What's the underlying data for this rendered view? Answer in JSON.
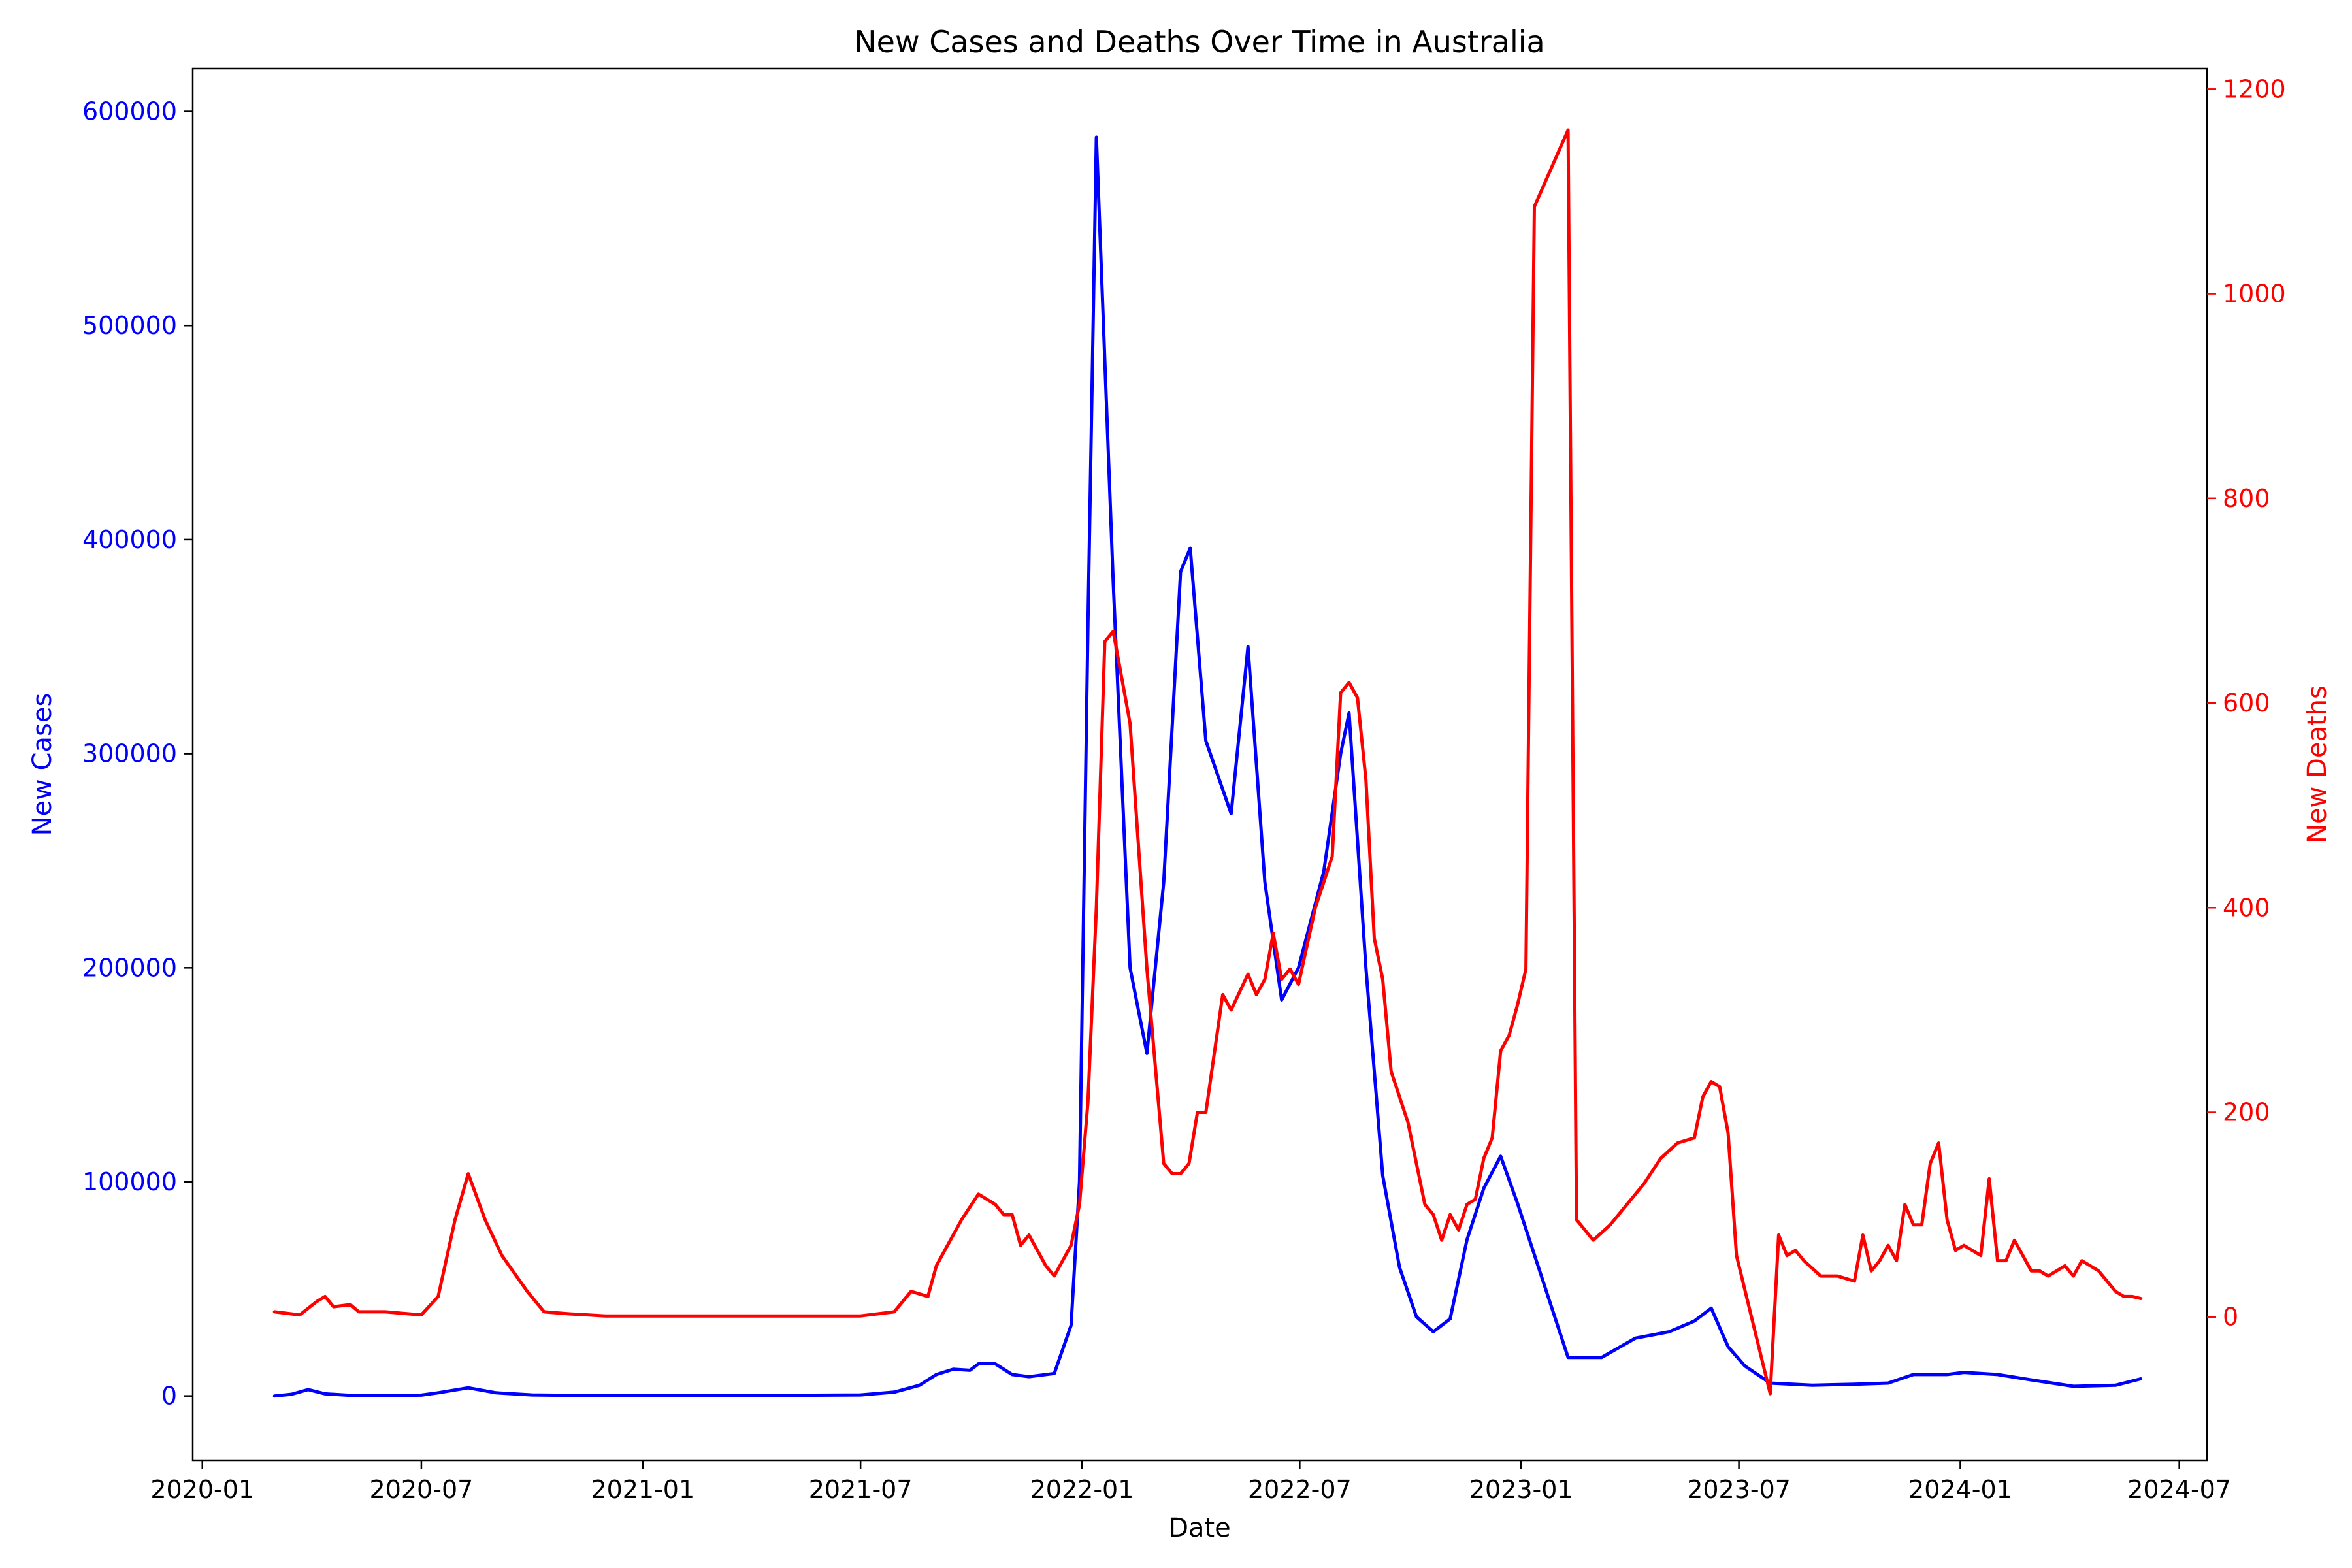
{
  "chart_data": {
    "type": "line",
    "title": "New Cases and Deaths Over Time in Australia",
    "xlabel": "Date",
    "ylabel": "New Cases",
    "ylabel_right": "New Deaths",
    "x_ticks": [
      "2020-01",
      "2020-07",
      "2021-01",
      "2021-07",
      "2022-01",
      "2022-07",
      "2023-01",
      "2023-07",
      "2024-01",
      "2024-07"
    ],
    "xlim": [
      "2019-12-24",
      "2024-07-24"
    ],
    "ylim": [
      -30000,
      620000
    ],
    "ylim_right": [
      -140,
      1220
    ],
    "y_ticks": [
      0,
      100000,
      200000,
      300000,
      400000,
      500000,
      600000
    ],
    "y_ticks_right": [
      0,
      200,
      400,
      600,
      800,
      1000,
      1200
    ],
    "grid": false,
    "colors": {
      "cases": "#0000ff",
      "deaths": "#ff0000",
      "axis": "#000000"
    },
    "series": [
      {
        "name": "New Cases",
        "axis": "left",
        "color": "#0000ff",
        "points": [
          [
            "2020-03-01",
            0
          ],
          [
            "2020-03-15",
            800
          ],
          [
            "2020-03-29",
            3000
          ],
          [
            "2020-04-12",
            1000
          ],
          [
            "2020-05-03",
            300
          ],
          [
            "2020-06-01",
            200
          ],
          [
            "2020-07-01",
            400
          ],
          [
            "2020-07-15",
            1500
          ],
          [
            "2020-08-09",
            3800
          ],
          [
            "2020-09-01",
            1500
          ],
          [
            "2020-10-01",
            500
          ],
          [
            "2020-11-01",
            300
          ],
          [
            "2020-12-01",
            200
          ],
          [
            "2021-01-01",
            300
          ],
          [
            "2021-04-01",
            200
          ],
          [
            "2021-07-01",
            500
          ],
          [
            "2021-07-29",
            1800
          ],
          [
            "2021-08-19",
            5000
          ],
          [
            "2021-09-02",
            10000
          ],
          [
            "2021-09-16",
            12500
          ],
          [
            "2021-09-30",
            12000
          ],
          [
            "2021-10-07",
            15000
          ],
          [
            "2021-10-21",
            15000
          ],
          [
            "2021-11-04",
            10000
          ],
          [
            "2021-11-18",
            9000
          ],
          [
            "2021-12-09",
            10500
          ],
          [
            "2021-12-23",
            33000
          ],
          [
            "2021-12-30",
            100000
          ],
          [
            "2022-01-06",
            360000
          ],
          [
            "2022-01-13",
            588000
          ],
          [
            "2022-01-27",
            380000
          ],
          [
            "2022-02-10",
            200000
          ],
          [
            "2022-02-24",
            160000
          ],
          [
            "2022-03-10",
            240000
          ],
          [
            "2022-03-24",
            385000
          ],
          [
            "2022-04-01",
            396000
          ],
          [
            "2022-04-14",
            306000
          ],
          [
            "2022-05-05",
            272000
          ],
          [
            "2022-05-19",
            350000
          ],
          [
            "2022-06-02",
            240000
          ],
          [
            "2022-06-16",
            185000
          ],
          [
            "2022-06-30",
            200000
          ],
          [
            "2022-07-21",
            245000
          ],
          [
            "2022-08-04",
            300000
          ],
          [
            "2022-08-11",
            319000
          ],
          [
            "2022-08-25",
            200000
          ],
          [
            "2022-09-08",
            103000
          ],
          [
            "2022-09-22",
            60000
          ],
          [
            "2022-10-06",
            37000
          ],
          [
            "2022-10-20",
            30000
          ],
          [
            "2022-11-03",
            36000
          ],
          [
            "2022-11-17",
            73000
          ],
          [
            "2022-12-01",
            97000
          ],
          [
            "2022-12-15",
            112000
          ],
          [
            "2022-12-29",
            90000
          ],
          [
            "2023-02-09",
            18000
          ],
          [
            "2023-03-09",
            18000
          ],
          [
            "2023-04-06",
            27000
          ],
          [
            "2023-05-04",
            30000
          ],
          [
            "2023-05-25",
            35000
          ],
          [
            "2023-06-08",
            41000
          ],
          [
            "2023-06-22",
            23000
          ],
          [
            "2023-07-06",
            14000
          ],
          [
            "2023-07-27",
            6000
          ],
          [
            "2023-08-31",
            5000
          ],
          [
            "2023-10-05",
            5500
          ],
          [
            "2023-11-02",
            6000
          ],
          [
            "2023-11-23",
            10000
          ],
          [
            "2023-12-21",
            10000
          ],
          [
            "2024-01-04",
            11000
          ],
          [
            "2024-02-01",
            10000
          ],
          [
            "2024-02-29",
            7500
          ],
          [
            "2024-04-04",
            4500
          ],
          [
            "2024-05-09",
            5000
          ],
          [
            "2024-05-30",
            8000
          ]
        ]
      },
      {
        "name": "New Deaths",
        "axis": "right",
        "color": "#ff0000",
        "points": [
          [
            "2020-03-01",
            5
          ],
          [
            "2020-03-22",
            2
          ],
          [
            "2020-04-05",
            15
          ],
          [
            "2020-04-12",
            20
          ],
          [
            "2020-04-19",
            10
          ],
          [
            "2020-05-03",
            12
          ],
          [
            "2020-05-10",
            5
          ],
          [
            "2020-06-01",
            5
          ],
          [
            "2020-07-01",
            2
          ],
          [
            "2020-07-15",
            20
          ],
          [
            "2020-07-29",
            95
          ],
          [
            "2020-08-09",
            140
          ],
          [
            "2020-08-23",
            95
          ],
          [
            "2020-09-06",
            60
          ],
          [
            "2020-09-27",
            25
          ],
          [
            "2020-10-11",
            5
          ],
          [
            "2020-11-01",
            3
          ],
          [
            "2020-12-01",
            1
          ],
          [
            "2021-01-01",
            1
          ],
          [
            "2021-04-01",
            1
          ],
          [
            "2021-07-01",
            1
          ],
          [
            "2021-07-29",
            5
          ],
          [
            "2021-08-12",
            25
          ],
          [
            "2021-08-26",
            20
          ],
          [
            "2021-09-02",
            50
          ],
          [
            "2021-09-23",
            95
          ],
          [
            "2021-10-07",
            120
          ],
          [
            "2021-10-21",
            110
          ],
          [
            "2021-10-28",
            100
          ],
          [
            "2021-11-04",
            100
          ],
          [
            "2021-11-11",
            70
          ],
          [
            "2021-11-18",
            80
          ],
          [
            "2021-12-02",
            50
          ],
          [
            "2021-12-09",
            40
          ],
          [
            "2021-12-23",
            70
          ],
          [
            "2021-12-30",
            110
          ],
          [
            "2022-01-06",
            210
          ],
          [
            "2022-01-13",
            400
          ],
          [
            "2022-01-20",
            660
          ],
          [
            "2022-01-27",
            670
          ],
          [
            "2022-02-10",
            580
          ],
          [
            "2022-02-24",
            340
          ],
          [
            "2022-03-10",
            150
          ],
          [
            "2022-03-17",
            140
          ],
          [
            "2022-03-24",
            140
          ],
          [
            "2022-03-31",
            150
          ],
          [
            "2022-04-07",
            200
          ],
          [
            "2022-04-14",
            200
          ],
          [
            "2022-04-28",
            315
          ],
          [
            "2022-05-05",
            300
          ],
          [
            "2022-05-19",
            335
          ],
          [
            "2022-05-26",
            315
          ],
          [
            "2022-06-02",
            330
          ],
          [
            "2022-06-09",
            375
          ],
          [
            "2022-06-16",
            330
          ],
          [
            "2022-06-23",
            340
          ],
          [
            "2022-06-30",
            325
          ],
          [
            "2022-07-14",
            400
          ],
          [
            "2022-07-28",
            450
          ],
          [
            "2022-08-04",
            610
          ],
          [
            "2022-08-11",
            620
          ],
          [
            "2022-08-18",
            605
          ],
          [
            "2022-08-25",
            525
          ],
          [
            "2022-09-01",
            370
          ],
          [
            "2022-09-08",
            330
          ],
          [
            "2022-09-15",
            240
          ],
          [
            "2022-09-29",
            190
          ],
          [
            "2022-10-13",
            110
          ],
          [
            "2022-10-20",
            100
          ],
          [
            "2022-10-27",
            75
          ],
          [
            "2022-11-03",
            100
          ],
          [
            "2022-11-10",
            85
          ],
          [
            "2022-11-17",
            110
          ],
          [
            "2022-11-24",
            115
          ],
          [
            "2022-12-01",
            155
          ],
          [
            "2022-12-08",
            175
          ],
          [
            "2022-12-15",
            260
          ],
          [
            "2022-12-22",
            275
          ],
          [
            "2022-12-29",
            305
          ],
          [
            "2023-01-05",
            340
          ],
          [
            "2023-01-12",
            1085
          ],
          [
            "2023-02-09",
            1160
          ],
          [
            "2023-02-16",
            95
          ],
          [
            "2023-03-02",
            75
          ],
          [
            "2023-03-16",
            90
          ],
          [
            "2023-03-30",
            110
          ],
          [
            "2023-04-13",
            130
          ],
          [
            "2023-04-27",
            155
          ],
          [
            "2023-05-11",
            170
          ],
          [
            "2023-05-25",
            175
          ],
          [
            "2023-06-01",
            215
          ],
          [
            "2023-06-08",
            230
          ],
          [
            "2023-06-15",
            225
          ],
          [
            "2023-06-22",
            180
          ],
          [
            "2023-06-29",
            60
          ],
          [
            "2023-07-27",
            -75
          ],
          [
            "2023-08-03",
            80
          ],
          [
            "2023-08-10",
            60
          ],
          [
            "2023-08-17",
            65
          ],
          [
            "2023-08-24",
            55
          ],
          [
            "2023-09-07",
            40
          ],
          [
            "2023-09-21",
            40
          ],
          [
            "2023-10-05",
            35
          ],
          [
            "2023-10-12",
            80
          ],
          [
            "2023-10-19",
            45
          ],
          [
            "2023-10-26",
            55
          ],
          [
            "2023-11-02",
            70
          ],
          [
            "2023-11-09",
            55
          ],
          [
            "2023-11-16",
            110
          ],
          [
            "2023-11-23",
            90
          ],
          [
            "2023-11-30",
            90
          ],
          [
            "2023-12-07",
            150
          ],
          [
            "2023-12-14",
            170
          ],
          [
            "2023-12-21",
            95
          ],
          [
            "2023-12-28",
            65
          ],
          [
            "2024-01-04",
            70
          ],
          [
            "2024-01-18",
            60
          ],
          [
            "2024-01-25",
            135
          ],
          [
            "2024-02-01",
            55
          ],
          [
            "2024-02-08",
            55
          ],
          [
            "2024-02-15",
            75
          ],
          [
            "2024-02-22",
            60
          ],
          [
            "2024-02-29",
            45
          ],
          [
            "2024-03-07",
            45
          ],
          [
            "2024-03-14",
            40
          ],
          [
            "2024-03-28",
            50
          ],
          [
            "2024-04-04",
            40
          ],
          [
            "2024-04-11",
            55
          ],
          [
            "2024-04-25",
            45
          ],
          [
            "2024-05-09",
            25
          ],
          [
            "2024-05-16",
            20
          ],
          [
            "2024-05-23",
            20
          ],
          [
            "2024-05-30",
            18
          ]
        ]
      }
    ]
  }
}
